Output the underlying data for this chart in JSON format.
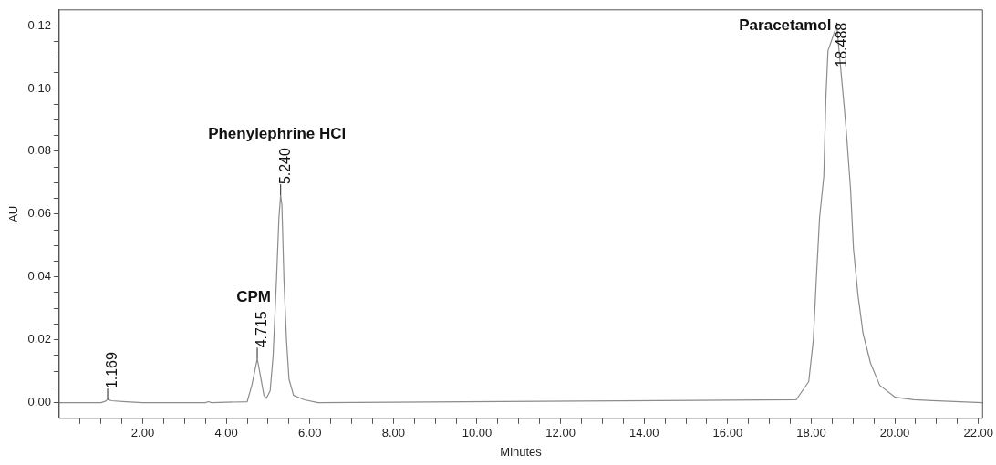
{
  "chart_data": {
    "type": "line",
    "xlabel": "Minutes",
    "ylabel": "AU",
    "x": [
      0,
      1.0,
      1.1,
      1.16,
      1.25,
      1.6,
      2.0,
      3.5,
      3.57,
      3.65,
      4.5,
      4.61,
      4.68,
      4.74,
      4.83,
      4.9,
      4.96,
      5.05,
      5.12,
      5.2,
      5.26,
      5.3,
      5.33,
      5.38,
      5.44,
      5.5,
      5.61,
      5.87,
      6.2,
      17.64,
      17.94,
      18.05,
      18.12,
      18.2,
      18.3,
      18.35,
      18.4,
      18.61,
      18.79,
      18.84,
      18.94,
      19.01,
      19.12,
      19.24,
      19.42,
      19.64,
      20.01,
      20.45,
      22.1
    ],
    "series": [
      {
        "color": "#8c8c8c",
        "values": [
          0,
          0,
          0.0004,
          0.001,
          0.0006,
          0.0003,
          0,
          0,
          0.0003,
          0,
          0.0003,
          0.0055,
          0.01,
          0.014,
          0.0075,
          0.0023,
          0.0014,
          0.0038,
          0.015,
          0.039,
          0.059,
          0.066,
          0.063,
          0.039,
          0.02,
          0.0075,
          0.0023,
          0.0009,
          0,
          0.0009,
          0.0067,
          0.02,
          0.039,
          0.059,
          0.072,
          0.097,
          0.112,
          0.12,
          0.094,
          0.086,
          0.068,
          0.049,
          0.034,
          0.022,
          0.0125,
          0.0055,
          0.0017,
          0.0009,
          0
        ]
      }
    ],
    "xlim": [
      0,
      22.1
    ],
    "xticks": [
      {
        "value": 0.5,
        "label": null
      },
      {
        "value": 1,
        "label": null
      },
      {
        "value": 1.5,
        "label": null
      },
      {
        "value": 2,
        "label": "2.00"
      },
      {
        "value": 2.5,
        "label": null
      },
      {
        "value": 3,
        "label": null
      },
      {
        "value": 3.5,
        "label": null
      },
      {
        "value": 4,
        "label": "4.00"
      },
      {
        "value": 4.5,
        "label": null
      },
      {
        "value": 5,
        "label": null
      },
      {
        "value": 5.5,
        "label": null
      },
      {
        "value": 6,
        "label": "6.00"
      },
      {
        "value": 6.5,
        "label": null
      },
      {
        "value": 7,
        "label": null
      },
      {
        "value": 7.5,
        "label": null
      },
      {
        "value": 8,
        "label": "8.00"
      },
      {
        "value": 8.5,
        "label": null
      },
      {
        "value": 9,
        "label": null
      },
      {
        "value": 9.5,
        "label": null
      },
      {
        "value": 10,
        "label": "10.00"
      },
      {
        "value": 10.5,
        "label": null
      },
      {
        "value": 11,
        "label": null
      },
      {
        "value": 11.5,
        "label": null
      },
      {
        "value": 12,
        "label": "12.00"
      },
      {
        "value": 12.5,
        "label": null
      },
      {
        "value": 13,
        "label": null
      },
      {
        "value": 13.5,
        "label": null
      },
      {
        "value": 14,
        "label": "14.00"
      },
      {
        "value": 14.5,
        "label": null
      },
      {
        "value": 15,
        "label": null
      },
      {
        "value": 15.5,
        "label": null
      },
      {
        "value": 16,
        "label": "16.00"
      },
      {
        "value": 16.5,
        "label": null
      },
      {
        "value": 17,
        "label": null
      },
      {
        "value": 17.5,
        "label": null
      },
      {
        "value": 18,
        "label": "18.00"
      },
      {
        "value": 18.5,
        "label": null
      },
      {
        "value": 19,
        "label": null
      },
      {
        "value": 19.5,
        "label": null
      },
      {
        "value": 20,
        "label": "20.00"
      },
      {
        "value": 20.5,
        "label": null
      },
      {
        "value": 21,
        "label": null
      },
      {
        "value": 21.5,
        "label": null
      },
      {
        "value": 22,
        "label": "22.00"
      }
    ],
    "ylim": [
      -0.005,
      0.125
    ],
    "yticks": [
      {
        "value": 0,
        "label": "0.00"
      },
      {
        "value": 0.005,
        "label": null
      },
      {
        "value": 0.01,
        "label": null
      },
      {
        "value": 0.015,
        "label": null
      },
      {
        "value": 0.02,
        "label": "0.02"
      },
      {
        "value": 0.025,
        "label": null
      },
      {
        "value": 0.03,
        "label": null
      },
      {
        "value": 0.035,
        "label": null
      },
      {
        "value": 0.04,
        "label": "0.04"
      },
      {
        "value": 0.045,
        "label": null
      },
      {
        "value": 0.05,
        "label": null
      },
      {
        "value": 0.055,
        "label": null
      },
      {
        "value": 0.06,
        "label": "0.06"
      },
      {
        "value": 0.065,
        "label": null
      },
      {
        "value": 0.07,
        "label": null
      },
      {
        "value": 0.075,
        "label": null
      },
      {
        "value": 0.08,
        "label": "0.08"
      },
      {
        "value": 0.085,
        "label": null
      },
      {
        "value": 0.09,
        "label": null
      },
      {
        "value": 0.095,
        "label": null
      },
      {
        "value": 0.1,
        "label": "0.10"
      },
      {
        "value": 0.105,
        "label": null
      },
      {
        "value": 0.11,
        "label": null
      },
      {
        "value": 0.115,
        "label": null
      },
      {
        "value": 0.12,
        "label": "0.12"
      }
    ],
    "grid": false,
    "legend": false,
    "marker": "none",
    "line_style": "solid",
    "annotations": [
      {
        "text": "1.169",
        "x": 1.16,
        "y": 0.001
      },
      {
        "text": "4.715",
        "x": 4.74,
        "y": 0.014
      },
      "CPM",
      {
        "text": "5.240",
        "x": 5.3,
        "y": 0.066
      },
      "Phenylephrine HCl",
      {
        "text": "18.488",
        "x": 18.61,
        "y": 0.12
      },
      "Paracetamol"
    ]
  }
}
